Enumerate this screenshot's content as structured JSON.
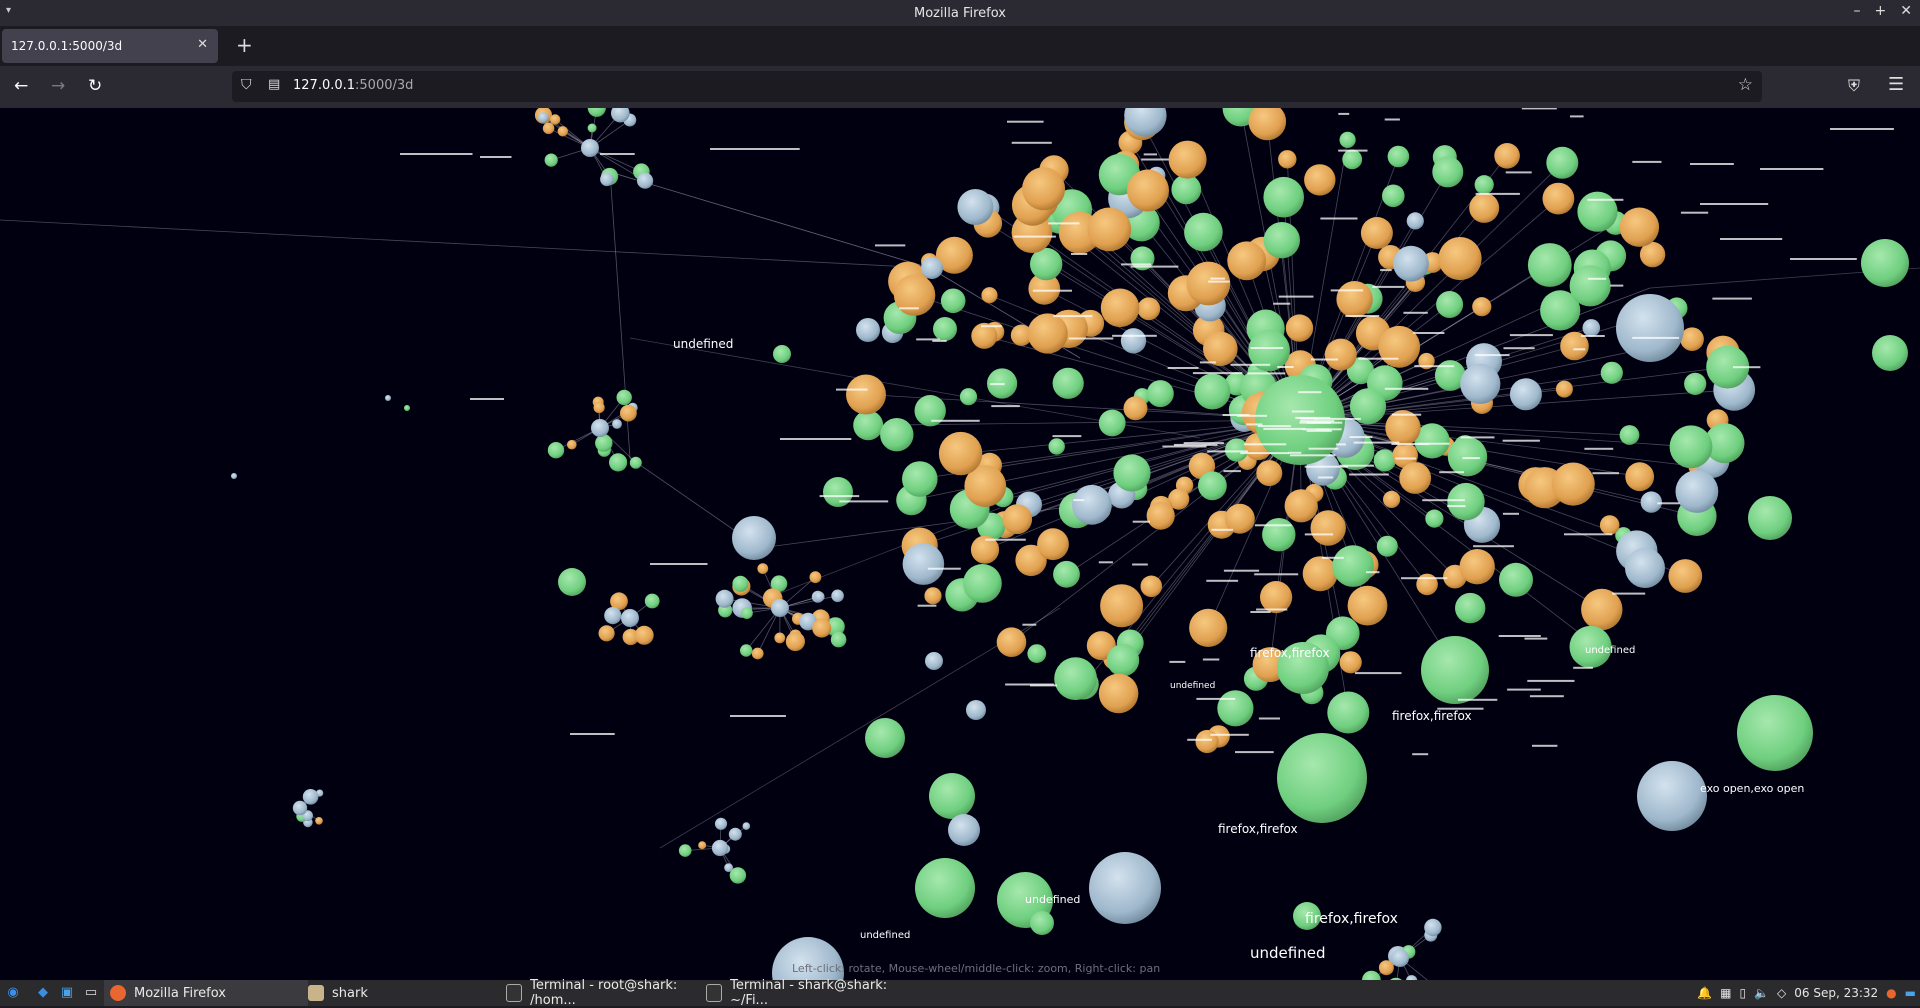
{
  "window": {
    "title": "Mozilla Firefox"
  },
  "tab": {
    "title": "127.0.0.1:5000/3d"
  },
  "url": {
    "host": "127.0.0.1",
    "path": ":5000/3d"
  },
  "graph": {
    "hint": "Left-click: rotate, Mouse-wheel/middle-click: zoom, Right-click: pan",
    "labels": [
      "undefined",
      "firefox,firefox",
      "firefox,firefox",
      "firefox,firefox",
      "firefox,firefox",
      "undefined",
      "undefined",
      "exo open,exo open",
      "undefined",
      "undefined",
      "undefined"
    ],
    "colors": {
      "green": "#6fcf7f",
      "orange": "#e0a050",
      "blue": "#9fb8cc",
      "background": "#000011"
    }
  },
  "taskbar": {
    "tasks": [
      "Mozilla Firefox",
      "shark",
      "Terminal - root@shark: /hom...",
      "Terminal - shark@shark: ~/Fi..."
    ],
    "clock": "06 Sep, 23:32"
  }
}
